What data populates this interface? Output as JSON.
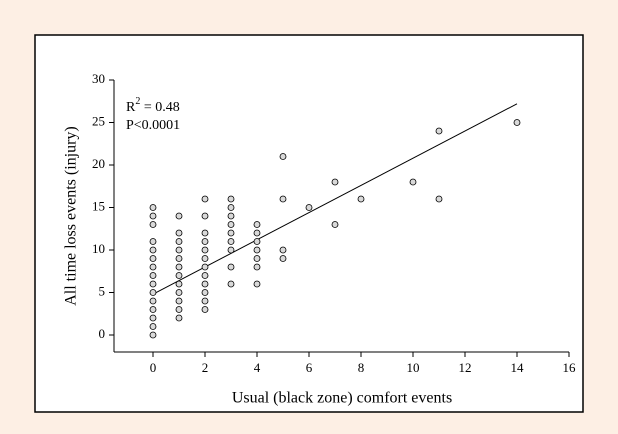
{
  "chart_data": {
    "type": "scatter",
    "x_label": "Usual (black zone) comfort events",
    "y_label": "All time loss events (injury)",
    "annotations": [
      {
        "base": "R",
        "sup": "2",
        "rest": " = 0.48"
      },
      {
        "text": "P<0.0001"
      }
    ],
    "series": [
      {
        "color": "#d9d9d9",
        "x": [
          0,
          0,
          0,
          0,
          0,
          0,
          0,
          0,
          0,
          0,
          0,
          0,
          0,
          0,
          0,
          1,
          1,
          1,
          1,
          1,
          1,
          1,
          1,
          1,
          1,
          1,
          1,
          2,
          2,
          2,
          2,
          2,
          2,
          2,
          2,
          2,
          2,
          2,
          2,
          3,
          3,
          3,
          3,
          3,
          3,
          3,
          3,
          3,
          4,
          4,
          4,
          4,
          4,
          4,
          4,
          5,
          5,
          5,
          5,
          6,
          7,
          7,
          8,
          10,
          11,
          11,
          14
        ],
        "values": [
          0,
          1,
          2,
          3,
          4,
          5,
          6,
          7,
          8,
          9,
          10,
          11,
          13,
          14,
          15,
          2,
          3,
          4,
          5,
          6,
          7,
          8,
          9,
          10,
          11,
          12,
          14,
          3,
          4,
          5,
          6,
          7,
          8,
          9,
          10,
          11,
          12,
          14,
          16,
          6,
          8,
          10,
          11,
          12,
          13,
          14,
          15,
          16,
          6,
          8,
          9,
          10,
          11,
          12,
          13,
          9,
          10,
          16,
          21,
          15,
          13,
          18,
          16,
          18,
          16,
          24,
          25
        ]
      }
    ],
    "trend": {
      "x": [
        0,
        14
      ],
      "values": [
        4.8,
        27.2
      ]
    },
    "xlim": [
      -1.5,
      16
    ],
    "xticks": [
      0,
      2,
      4,
      6,
      8,
      10,
      12,
      14,
      16
    ],
    "ylim": [
      -2,
      30
    ],
    "yticks": [
      0,
      5,
      10,
      15,
      20,
      25,
      30
    ]
  }
}
